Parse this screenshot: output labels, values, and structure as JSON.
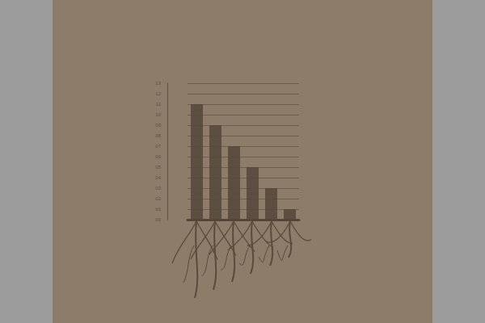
{
  "chart_data": {
    "type": "bar",
    "categories": [
      null,
      null,
      null,
      null,
      null,
      null
    ],
    "values": [
      11,
      9,
      7,
      5,
      3,
      1
    ],
    "color": "#54463a",
    "ylim": [
      0,
      13
    ],
    "yticks": [
      {
        "value": 0,
        "label": "00"
      },
      {
        "value": 1,
        "label": "01"
      },
      {
        "value": 2,
        "label": "02"
      },
      {
        "value": 3,
        "label": "03"
      },
      {
        "value": 4,
        "label": "04"
      },
      {
        "value": 5,
        "label": "05"
      },
      {
        "value": 6,
        "label": "06"
      },
      {
        "value": 7,
        "label": "07"
      },
      {
        "value": 8,
        "label": "08"
      },
      {
        "value": 9,
        "label": "09"
      },
      {
        "value": 10,
        "label": "10"
      },
      {
        "value": 11,
        "label": "11"
      },
      {
        "value": 12,
        "label": "12"
      },
      {
        "value": 13,
        "label": "13"
      }
    ],
    "grid": true,
    "tick_labels": "y"
  }
}
